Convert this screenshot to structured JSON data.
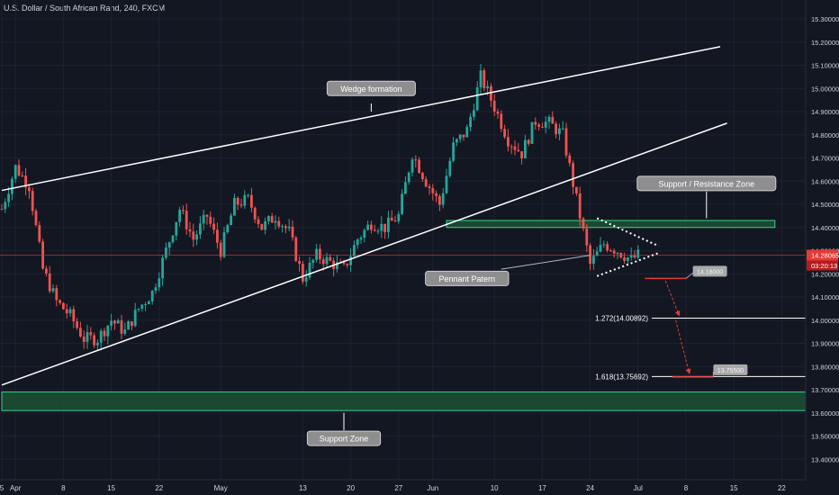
{
  "header": {
    "title": "U.S. Dollar / South African Rand, 240, FXCM"
  },
  "colors": {
    "background": "#131722",
    "bull": "#26a69a",
    "bear": "#ef5350",
    "grid": "#1e2230",
    "text": "#d1d4dc",
    "accent": "#e53935",
    "zone_fill": "#1c5132",
    "zone_border": "#3ad38e",
    "label_bg": "#a9a9a9"
  },
  "chart_data": {
    "type": "candlestick",
    "symbol": "U.S. Dollar / South African Rand",
    "interval": "240",
    "source": "FXCM",
    "price_axis": {
      "range": [
        13.35,
        15.4
      ],
      "ticks": [
        "15.30000",
        "15.20000",
        "15.10000",
        "15.00000",
        "14.90000",
        "14.80000",
        "14.70000",
        "14.60000",
        "14.50000",
        "14.40000",
        "14.30000",
        "14.20000",
        "14.10000",
        "14.00000",
        "13.90000",
        "13.80000",
        "13.70000",
        "13.60000",
        "13.50000",
        "13.40000"
      ]
    },
    "time_axis": {
      "labels": [
        {
          "label": "5",
          "day": 0
        },
        {
          "label": "Apr",
          "day": 2
        },
        {
          "label": "8",
          "day": 9
        },
        {
          "label": "15",
          "day": 16
        },
        {
          "label": "22",
          "day": 23
        },
        {
          "label": "May",
          "day": 32
        },
        {
          "label": "13",
          "day": 44
        },
        {
          "label": "20",
          "day": 51
        },
        {
          "label": "27",
          "day": 58
        },
        {
          "label": "Jun",
          "day": 63
        },
        {
          "label": "10",
          "day": 72
        },
        {
          "label": "17",
          "day": 79
        },
        {
          "label": "24",
          "day": 86
        },
        {
          "label": "Jul",
          "day": 93
        },
        {
          "label": "8",
          "day": 100
        },
        {
          "label": "15",
          "day": 107
        },
        {
          "label": "22",
          "day": 114
        }
      ]
    },
    "last_price": {
      "value": 14.28065,
      "label": "14.28065",
      "countdown": "03:20:13"
    },
    "price_path": [
      [
        0,
        14.48
      ],
      [
        2,
        14.66
      ],
      [
        4,
        14.58
      ],
      [
        6,
        14.22
      ],
      [
        8,
        14.08
      ],
      [
        10,
        14.02
      ],
      [
        12,
        13.92
      ],
      [
        14,
        13.92
      ],
      [
        16,
        14.0
      ],
      [
        18,
        13.95
      ],
      [
        20,
        14.05
      ],
      [
        22,
        14.12
      ],
      [
        24,
        14.3
      ],
      [
        26,
        14.48
      ],
      [
        28,
        14.35
      ],
      [
        30,
        14.45
      ],
      [
        32,
        14.3
      ],
      [
        34,
        14.5
      ],
      [
        36,
        14.52
      ],
      [
        38,
        14.4
      ],
      [
        40,
        14.45
      ],
      [
        42,
        14.38
      ],
      [
        44,
        14.18
      ],
      [
        46,
        14.28
      ],
      [
        48,
        14.25
      ],
      [
        50,
        14.22
      ],
      [
        52,
        14.35
      ],
      [
        54,
        14.42
      ],
      [
        56,
        14.4
      ],
      [
        58,
        14.45
      ],
      [
        60,
        14.72
      ],
      [
        62,
        14.6
      ],
      [
        64,
        14.5
      ],
      [
        66,
        14.75
      ],
      [
        68,
        14.82
      ],
      [
        70,
        15.05
      ],
      [
        72,
        14.92
      ],
      [
        74,
        14.78
      ],
      [
        76,
        14.72
      ],
      [
        78,
        14.86
      ],
      [
        80,
        14.85
      ],
      [
        82,
        14.8
      ],
      [
        83,
        14.66
      ],
      [
        84,
        14.52
      ],
      [
        86,
        14.24
      ],
      [
        88,
        14.33
      ],
      [
        90,
        14.3
      ],
      [
        92,
        14.26
      ],
      [
        93,
        14.28
      ]
    ],
    "trendlines": [
      {
        "name": "wedge-upper-line",
        "from": [
          0,
          14.56
        ],
        "to": [
          105,
          15.18
        ]
      },
      {
        "name": "wedge-lower-line",
        "from": [
          0,
          13.72
        ],
        "to": [
          106,
          14.85
        ]
      },
      {
        "name": "pennant-upper-line",
        "from": [
          87,
          14.44
        ],
        "to": [
          96,
          14.32
        ],
        "style": "dotted"
      },
      {
        "name": "pennant-lower-line",
        "from": [
          87,
          14.19
        ],
        "to": [
          96,
          14.29
        ],
        "style": "dotted"
      },
      {
        "name": "pennant-pointer-line",
        "from": [
          73,
          14.22
        ],
        "to": [
          86,
          14.28
        ]
      }
    ],
    "zones": [
      {
        "name": "support-resistance-zone",
        "from": [
          65,
          14.4
        ],
        "to": [
          113,
          14.43
        ]
      },
      {
        "name": "support-zone",
        "from": [
          0,
          13.61
        ],
        "to": [
          120,
          13.69
        ]
      }
    ],
    "levels": [
      {
        "name": "fib-level-1272",
        "label": "1.272(14.00892)",
        "value": 14.00892,
        "from_day": 95
      },
      {
        "name": "fib-level-1618",
        "label": "1.618(13.75692)",
        "value": 13.75692,
        "from_day": 95
      }
    ],
    "targets": [
      {
        "name": "target-1",
        "label": "14.18000",
        "value": 14.18,
        "from_day": 94,
        "to_day": 100,
        "tag_day": 101
      },
      {
        "name": "target-2",
        "label": "13.75500",
        "value": 13.755,
        "from_day": 98,
        "to_day": 104,
        "tag_day": 104
      }
    ],
    "arrows": [
      {
        "name": "projection-arrow-1",
        "from": [
          97,
          14.17
        ],
        "to": [
          99,
          14.02
        ]
      },
      {
        "name": "projection-arrow-2",
        "from": [
          98.5,
          14.0
        ],
        "to": [
          100.5,
          13.77
        ]
      }
    ],
    "callouts": [
      {
        "name": "wedge-formation",
        "text": "Wedge formation",
        "at": [
          54,
          15.0
        ]
      },
      {
        "name": "support-resistance",
        "text": "Support / Resistance Zone",
        "at": [
          103,
          14.59
        ]
      },
      {
        "name": "pennant-pattern",
        "text": "Pennant Patern",
        "at": [
          68,
          14.18
        ]
      },
      {
        "name": "support-zone",
        "text": "Support Zone",
        "at": [
          50,
          13.49
        ]
      }
    ]
  }
}
